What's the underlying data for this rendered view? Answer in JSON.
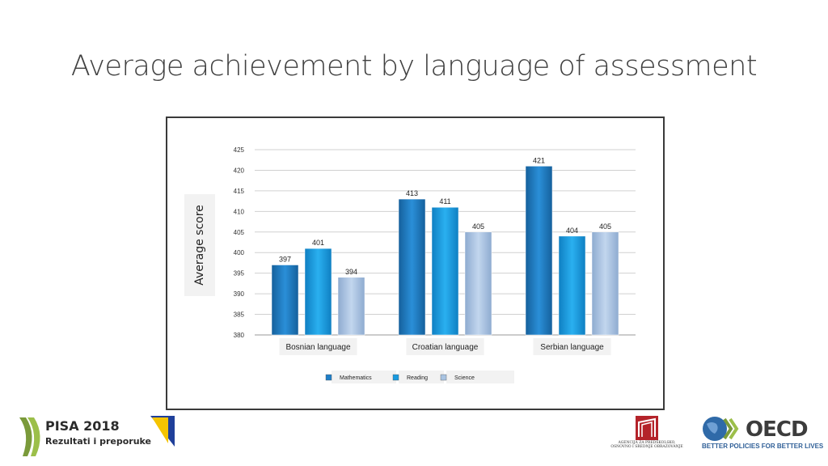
{
  "slide": {
    "title": "Average achievement by language of assessment"
  },
  "chart_data": {
    "type": "bar",
    "title": "",
    "xlabel": "",
    "ylabel": "Average  score",
    "categories": [
      "Bosnian language",
      "Croatian language",
      "Serbian language"
    ],
    "series": [
      {
        "name": "Mathematics",
        "values": [
          397,
          413,
          421
        ],
        "color": "#1f7fc8"
      },
      {
        "name": "Reading",
        "values": [
          401,
          411,
          404
        ],
        "color": "#1a9be0"
      },
      {
        "name": "Science",
        "values": [
          394,
          405,
          405
        ],
        "color": "#a9c4e2"
      }
    ],
    "ylim": [
      380,
      425
    ],
    "yticks": [
      "380",
      "385",
      "390",
      "395",
      "400",
      "405",
      "410",
      "415",
      "420",
      "425"
    ],
    "grid": true,
    "legend": "bottom",
    "data_labels": true
  },
  "footer": {
    "pisa_title": "PISA 2018",
    "pisa_subtitle": "Rezultati i preporuke",
    "agency_line1": "AGENCIJA ZA PREDŠKOLSKO,",
    "agency_line2": "OSNOVNO I SREDNJE OBRAZOVANJE",
    "oecd_name": "OECD",
    "oecd_tagline": "BETTER POLICIES FOR BETTER LIVES"
  }
}
